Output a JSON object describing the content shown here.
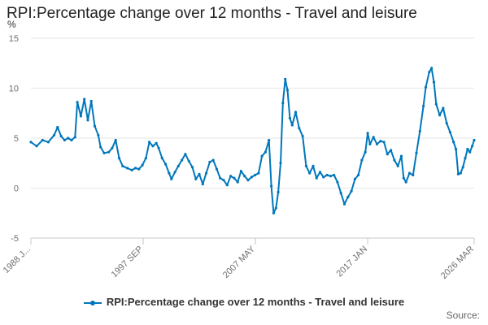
{
  "chart_data": {
    "type": "line",
    "title": "RPI:Percentage change over 12 months - Travel and leisure",
    "unit_label": "%",
    "ylim": [
      -5,
      15
    ],
    "y_ticks": [
      -5,
      0,
      5,
      10,
      15
    ],
    "x_tick_labels": [
      "1988 J...",
      "1997 SEP",
      "2007 MAY",
      "2017 JAN",
      "2026 MAR"
    ],
    "x_range": [
      1988.0,
      2026.17
    ],
    "x_tick_positions": [
      1988.0,
      1997.67,
      2007.33,
      2017.0,
      2026.17
    ],
    "grid": true,
    "legend": "bottom-center",
    "source_label": "Source:",
    "color": "#0077bb",
    "series": [
      {
        "name": "RPI:Percentage change over 12 months - Travel and leisure",
        "points": [
          [
            1988.0,
            4.6
          ],
          [
            1988.5,
            4.2
          ],
          [
            1989.0,
            4.8
          ],
          [
            1989.5,
            4.6
          ],
          [
            1990.0,
            5.3
          ],
          [
            1990.3,
            6.1
          ],
          [
            1990.6,
            5.2
          ],
          [
            1990.9,
            4.8
          ],
          [
            1991.2,
            5.0
          ],
          [
            1991.5,
            4.8
          ],
          [
            1991.8,
            5.1
          ],
          [
            1992.0,
            8.6
          ],
          [
            1992.3,
            7.2
          ],
          [
            1992.6,
            8.9
          ],
          [
            1992.9,
            6.8
          ],
          [
            1993.2,
            8.7
          ],
          [
            1993.5,
            6.2
          ],
          [
            1993.8,
            5.3
          ],
          [
            1994.0,
            4.1
          ],
          [
            1994.3,
            3.5
          ],
          [
            1994.7,
            3.6
          ],
          [
            1995.0,
            4.0
          ],
          [
            1995.3,
            4.8
          ],
          [
            1995.6,
            3.0
          ],
          [
            1995.9,
            2.2
          ],
          [
            1996.3,
            2.0
          ],
          [
            1996.7,
            1.8
          ],
          [
            1997.0,
            2.0
          ],
          [
            1997.3,
            1.9
          ],
          [
            1997.6,
            2.3
          ],
          [
            1997.9,
            3.0
          ],
          [
            1998.2,
            4.6
          ],
          [
            1998.5,
            4.2
          ],
          [
            1998.8,
            4.5
          ],
          [
            1999.0,
            4.0
          ],
          [
            1999.3,
            3.0
          ],
          [
            1999.6,
            2.4
          ],
          [
            1999.9,
            1.5
          ],
          [
            2000.1,
            0.9
          ],
          [
            2000.4,
            1.6
          ],
          [
            2000.7,
            2.2
          ],
          [
            2001.0,
            2.8
          ],
          [
            2001.3,
            3.4
          ],
          [
            2001.6,
            2.7
          ],
          [
            2001.9,
            2.1
          ],
          [
            2002.2,
            0.9
          ],
          [
            2002.5,
            1.4
          ],
          [
            2002.8,
            0.4
          ],
          [
            2003.1,
            1.5
          ],
          [
            2003.4,
            2.6
          ],
          [
            2003.7,
            2.8
          ],
          [
            2004.0,
            1.9
          ],
          [
            2004.3,
            1.0
          ],
          [
            2004.6,
            0.8
          ],
          [
            2004.9,
            0.3
          ],
          [
            2005.2,
            1.2
          ],
          [
            2005.5,
            1.0
          ],
          [
            2005.8,
            0.6
          ],
          [
            2006.1,
            1.7
          ],
          [
            2006.4,
            1.2
          ],
          [
            2006.7,
            0.8
          ],
          [
            2007.0,
            1.1
          ],
          [
            2007.3,
            1.3
          ],
          [
            2007.6,
            1.5
          ],
          [
            2007.9,
            3.2
          ],
          [
            2008.2,
            3.6
          ],
          [
            2008.5,
            4.8
          ],
          [
            2008.7,
            0.2
          ],
          [
            2008.9,
            -2.5
          ],
          [
            2009.1,
            -2.0
          ],
          [
            2009.3,
            -0.4
          ],
          [
            2009.5,
            2.5
          ],
          [
            2009.7,
            8.5
          ],
          [
            2009.9,
            10.9
          ],
          [
            2010.1,
            9.8
          ],
          [
            2010.3,
            7.0
          ],
          [
            2010.5,
            6.3
          ],
          [
            2010.8,
            7.6
          ],
          [
            2011.1,
            6.0
          ],
          [
            2011.4,
            5.2
          ],
          [
            2011.7,
            2.2
          ],
          [
            2012.0,
            1.5
          ],
          [
            2012.3,
            2.2
          ],
          [
            2012.6,
            1.0
          ],
          [
            2012.9,
            1.6
          ],
          [
            2013.2,
            1.1
          ],
          [
            2013.5,
            1.3
          ],
          [
            2013.8,
            1.2
          ],
          [
            2014.1,
            1.3
          ],
          [
            2014.4,
            0.6
          ],
          [
            2014.7,
            -0.5
          ],
          [
            2015.0,
            -1.6
          ],
          [
            2015.3,
            -0.9
          ],
          [
            2015.6,
            -0.3
          ],
          [
            2015.9,
            0.9
          ],
          [
            2016.2,
            1.3
          ],
          [
            2016.5,
            2.8
          ],
          [
            2016.8,
            3.6
          ],
          [
            2017.0,
            5.5
          ],
          [
            2017.2,
            4.4
          ],
          [
            2017.5,
            5.1
          ],
          [
            2017.8,
            4.4
          ],
          [
            2018.1,
            4.7
          ],
          [
            2018.4,
            4.6
          ],
          [
            2018.7,
            3.4
          ],
          [
            2019.0,
            3.8
          ],
          [
            2019.3,
            2.8
          ],
          [
            2019.6,
            2.2
          ],
          [
            2019.9,
            3.2
          ],
          [
            2020.1,
            1.0
          ],
          [
            2020.3,
            0.6
          ],
          [
            2020.6,
            1.5
          ],
          [
            2020.9,
            1.3
          ],
          [
            2021.2,
            3.5
          ],
          [
            2021.5,
            5.7
          ],
          [
            2021.8,
            8.2
          ],
          [
            2022.0,
            10.1
          ],
          [
            2022.3,
            11.6
          ],
          [
            2022.5,
            12.0
          ],
          [
            2022.7,
            10.6
          ],
          [
            2022.9,
            8.4
          ],
          [
            2023.2,
            7.3
          ],
          [
            2023.5,
            8.0
          ],
          [
            2023.8,
            6.5
          ],
          [
            2024.1,
            5.6
          ],
          [
            2024.4,
            4.6
          ],
          [
            2024.6,
            3.9
          ],
          [
            2024.8,
            1.4
          ],
          [
            2025.0,
            1.5
          ],
          [
            2025.2,
            2.1
          ],
          [
            2025.4,
            3.0
          ],
          [
            2025.6,
            3.9
          ],
          [
            2025.8,
            3.6
          ],
          [
            2026.0,
            4.2
          ],
          [
            2026.17,
            4.8
          ]
        ]
      }
    ]
  }
}
